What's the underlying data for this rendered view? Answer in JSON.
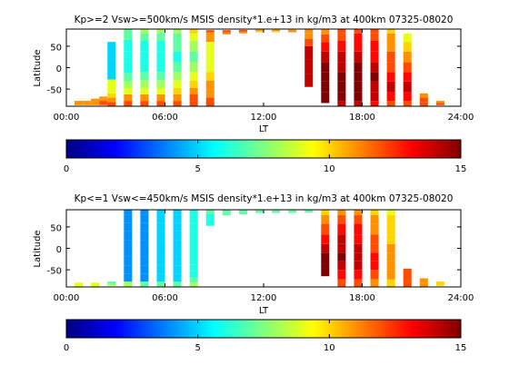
{
  "chart_data": [
    {
      "type": "heatmap",
      "title": "Kp>=2 Vsw>=500km/s MSIS density*1.e+13 in kg/m3 at 400km 07325-08020",
      "xlabel": "LT",
      "ylabel": "Latitude",
      "xlim": [
        0,
        24
      ],
      "ylim": [
        -90,
        90
      ],
      "xticks": [
        "00:00",
        "06:00",
        "12:00",
        "18:00",
        "24:00"
      ],
      "yticks": [
        "-50",
        "0",
        "50"
      ],
      "colorbar": {
        "range": [
          0,
          15
        ],
        "ticks": [
          "0",
          "5",
          "10",
          "15"
        ],
        "colormap": "jet"
      },
      "columns": [
        {
          "lt": 0.75,
          "lat": [
            -85,
            -80
          ],
          "values": [
            11,
            11
          ]
        },
        {
          "lt": 1.25,
          "lat": [
            -85,
            -80
          ],
          "values": [
            11,
            11
          ]
        },
        {
          "lt": 1.75,
          "lat": [
            -85,
            -80,
            -75
          ],
          "values": [
            11,
            11,
            11
          ]
        },
        {
          "lt": 2.25,
          "lat": [
            -85,
            -80,
            -75,
            -70
          ],
          "values": [
            12,
            12,
            11,
            11
          ]
        },
        {
          "lt": 2.75,
          "lat": [
            -85,
            -75,
            -65,
            -55,
            0,
            40
          ],
          "values": [
            12,
            11,
            10,
            9,
            5,
            5
          ]
        },
        {
          "lt": 3.75,
          "lat": [
            -85,
            -70,
            -55,
            -40,
            -25,
            0,
            25,
            50,
            80
          ],
          "values": [
            12,
            11,
            9,
            8,
            7,
            6,
            6,
            6,
            7
          ]
        },
        {
          "lt": 4.75,
          "lat": [
            -85,
            -70,
            -55,
            -40,
            -20,
            0,
            25,
            50,
            75,
            85
          ],
          "values": [
            12,
            11,
            9,
            8,
            7,
            6,
            6,
            6,
            7,
            8
          ]
        },
        {
          "lt": 5.75,
          "lat": [
            -85,
            -70,
            -55,
            -40,
            -20,
            0,
            25,
            50,
            75,
            85
          ],
          "values": [
            12,
            11,
            9,
            8,
            7,
            6,
            6,
            6,
            7,
            8
          ]
        },
        {
          "lt": 6.75,
          "lat": [
            -85,
            -70,
            -55,
            -40,
            -20,
            0,
            25,
            50,
            75,
            85
          ],
          "values": [
            12,
            11,
            10,
            9,
            8,
            7,
            6,
            7,
            7,
            8
          ]
        },
        {
          "lt": 7.75,
          "lat": [
            -85,
            -70,
            -55,
            -40,
            -20,
            0,
            25,
            50,
            75,
            85
          ],
          "values": [
            12,
            12,
            11,
            10,
            9,
            8,
            7,
            8,
            9,
            10
          ]
        },
        {
          "lt": 8.75,
          "lat": [
            -80,
            -60,
            -40,
            -20,
            0,
            25,
            50,
            70,
            80,
            85
          ],
          "values": [
            12,
            11,
            11,
            10,
            9,
            9,
            9,
            11,
            11,
            12
          ]
        },
        {
          "lt": 9.75,
          "lat": [
            80,
            85
          ],
          "values": [
            11,
            12
          ]
        },
        {
          "lt": 10.75,
          "lat": [
            82,
            86
          ],
          "values": [
            11,
            12
          ]
        },
        {
          "lt": 11.75,
          "lat": [
            84,
            87
          ],
          "values": [
            10,
            11
          ]
        },
        {
          "lt": 12.75,
          "lat": [
            84,
            87
          ],
          "values": [
            10,
            11
          ]
        },
        {
          "lt": 13.75,
          "lat": [
            84,
            87
          ],
          "values": [
            11,
            11
          ]
        },
        {
          "lt": 14.75,
          "lat": [
            -30,
            0,
            40,
            60,
            75,
            85
          ],
          "values": [
            14,
            14,
            14,
            12,
            11,
            11
          ]
        },
        {
          "lt": 15.75,
          "lat": [
            -70,
            -45,
            -20,
            0,
            25,
            50,
            70,
            85
          ],
          "values": [
            15,
            15,
            15,
            15,
            14,
            13,
            12,
            11
          ]
        },
        {
          "lt": 16.75,
          "lat": [
            -85,
            -70,
            -45,
            -20,
            0,
            25,
            50,
            75,
            85
          ],
          "values": [
            14,
            15,
            15,
            15,
            14,
            14,
            13,
            12,
            12
          ]
        },
        {
          "lt": 17.75,
          "lat": [
            -85,
            -70,
            -45,
            -20,
            0,
            25,
            50,
            75,
            85
          ],
          "values": [
            14,
            15,
            15,
            15,
            15,
            14,
            13,
            13,
            12
          ]
        },
        {
          "lt": 18.75,
          "lat": [
            -85,
            -70,
            -45,
            -20,
            0,
            25,
            50,
            75,
            85
          ],
          "values": [
            13,
            14,
            14,
            15,
            14,
            13,
            13,
            12,
            12
          ]
        },
        {
          "lt": 19.75,
          "lat": [
            -85,
            -70,
            -45,
            -20,
            0,
            25,
            50,
            75,
            85
          ],
          "values": [
            12,
            13,
            14,
            13,
            12,
            12,
            11,
            11,
            10
          ]
        },
        {
          "lt": 20.75,
          "lat": [
            -85,
            -70,
            -45,
            -20,
            0,
            25,
            50,
            70
          ],
          "values": [
            12,
            13,
            14,
            13,
            12,
            11,
            10,
            9
          ]
        },
        {
          "lt": 21.75,
          "lat": [
            -85,
            -75,
            -65
          ],
          "values": [
            12,
            12,
            11
          ]
        },
        {
          "lt": 22.75,
          "lat": [
            -85,
            -80
          ],
          "values": [
            12,
            11
          ]
        }
      ]
    },
    {
      "type": "heatmap",
      "title": "Kp<=1 Vsw<=450km/s MSIS density*1.e+13 in kg/m3 at 400km 07325-08020",
      "xlabel": "LT",
      "ylabel": "Latitude",
      "xlim": [
        0,
        24
      ],
      "ylim": [
        -90,
        90
      ],
      "xticks": [
        "00:00",
        "06:00",
        "12:00",
        "18:00",
        "24:00"
      ],
      "yticks": [
        "-50",
        "0",
        "50"
      ],
      "colorbar": {
        "range": [
          0,
          15
        ],
        "ticks": [
          "0",
          "5",
          "10",
          "15"
        ],
        "colormap": "jet"
      },
      "columns": [
        {
          "lt": 0.75,
          "lat": [
            -85
          ],
          "values": [
            9
          ]
        },
        {
          "lt": 1.75,
          "lat": [
            -85
          ],
          "values": [
            9
          ]
        },
        {
          "lt": 2.75,
          "lat": [
            -85,
            -80
          ],
          "values": [
            8,
            7
          ]
        },
        {
          "lt": 3.75,
          "lat": [
            -85,
            -70,
            -50,
            -30,
            -10,
            10,
            30,
            50,
            70,
            85
          ],
          "values": [
            8,
            4,
            4,
            4,
            4,
            4,
            4,
            4,
            4,
            4
          ]
        },
        {
          "lt": 4.75,
          "lat": [
            -85,
            -70,
            -50,
            -30,
            -10,
            10,
            30,
            50,
            70,
            85
          ],
          "values": [
            7,
            4,
            4,
            4,
            4,
            4,
            4,
            4,
            4,
            4
          ]
        },
        {
          "lt": 5.75,
          "lat": [
            -85,
            -70,
            -50,
            -30,
            -10,
            10,
            30,
            50,
            70,
            85
          ],
          "values": [
            7,
            5,
            5,
            5,
            5,
            5,
            5,
            5,
            5,
            5
          ]
        },
        {
          "lt": 6.75,
          "lat": [
            -85,
            -70,
            -50,
            -30,
            -10,
            10,
            30,
            50,
            70,
            85
          ],
          "values": [
            7,
            5,
            5,
            5,
            5,
            5,
            5,
            5,
            5,
            5
          ]
        },
        {
          "lt": 7.75,
          "lat": [
            -85,
            -75,
            -60,
            -45,
            -30,
            -10,
            10,
            30,
            50,
            70,
            85
          ],
          "values": [
            8,
            7,
            6,
            6,
            6,
            6,
            6,
            6,
            6,
            6,
            6
          ]
        },
        {
          "lt": 8.75,
          "lat": [
            60,
            75,
            85
          ],
          "values": [
            6,
            6,
            7
          ]
        },
        {
          "lt": 9.75,
          "lat": [
            80,
            86
          ],
          "values": [
            7,
            7
          ]
        },
        {
          "lt": 10.75,
          "lat": [
            82,
            87
          ],
          "values": [
            7,
            7
          ]
        },
        {
          "lt": 11.75,
          "lat": [
            84,
            87
          ],
          "values": [
            7,
            7
          ]
        },
        {
          "lt": 12.75,
          "lat": [
            84,
            87
          ],
          "values": [
            7,
            7
          ]
        },
        {
          "lt": 13.75,
          "lat": [
            84,
            87
          ],
          "values": [
            7,
            7
          ]
        },
        {
          "lt": 14.75,
          "lat": [
            85,
            88
          ],
          "values": [
            7,
            7
          ]
        },
        {
          "lt": 15.75,
          "lat": [
            -50,
            -20,
            0,
            20,
            45,
            70,
            85
          ],
          "values": [
            15,
            15,
            14,
            13,
            12,
            11,
            10
          ]
        },
        {
          "lt": 16.75,
          "lat": [
            -85,
            -60,
            -40,
            -20,
            0,
            20,
            45,
            70,
            85
          ],
          "values": [
            12,
            13,
            14,
            15,
            14,
            14,
            13,
            12,
            11
          ]
        },
        {
          "lt": 17.75,
          "lat": [
            -85,
            -60,
            -40,
            -20,
            0,
            20,
            45,
            70,
            85
          ],
          "values": [
            12,
            13,
            14,
            14,
            14,
            13,
            13,
            12,
            11
          ]
        },
        {
          "lt": 18.75,
          "lat": [
            -85,
            -60,
            -40,
            -20,
            0,
            20,
            45,
            70,
            85
          ],
          "values": [
            11,
            12,
            13,
            13,
            12,
            12,
            11,
            11,
            10
          ]
        },
        {
          "lt": 19.75,
          "lat": [
            -85,
            -60,
            -40,
            -20,
            0,
            20,
            45,
            70,
            85
          ],
          "values": [
            10,
            11,
            11,
            11,
            11,
            10,
            10,
            10,
            9
          ]
        },
        {
          "lt": 20.75,
          "lat": [
            -85,
            -70,
            -55
          ],
          "values": [
            12,
            12,
            12
          ]
        },
        {
          "lt": 21.75,
          "lat": [
            -85,
            -75
          ],
          "values": [
            11,
            11
          ]
        },
        {
          "lt": 22.75,
          "lat": [
            -85,
            -80
          ],
          "values": [
            10,
            10
          ]
        }
      ]
    }
  ]
}
